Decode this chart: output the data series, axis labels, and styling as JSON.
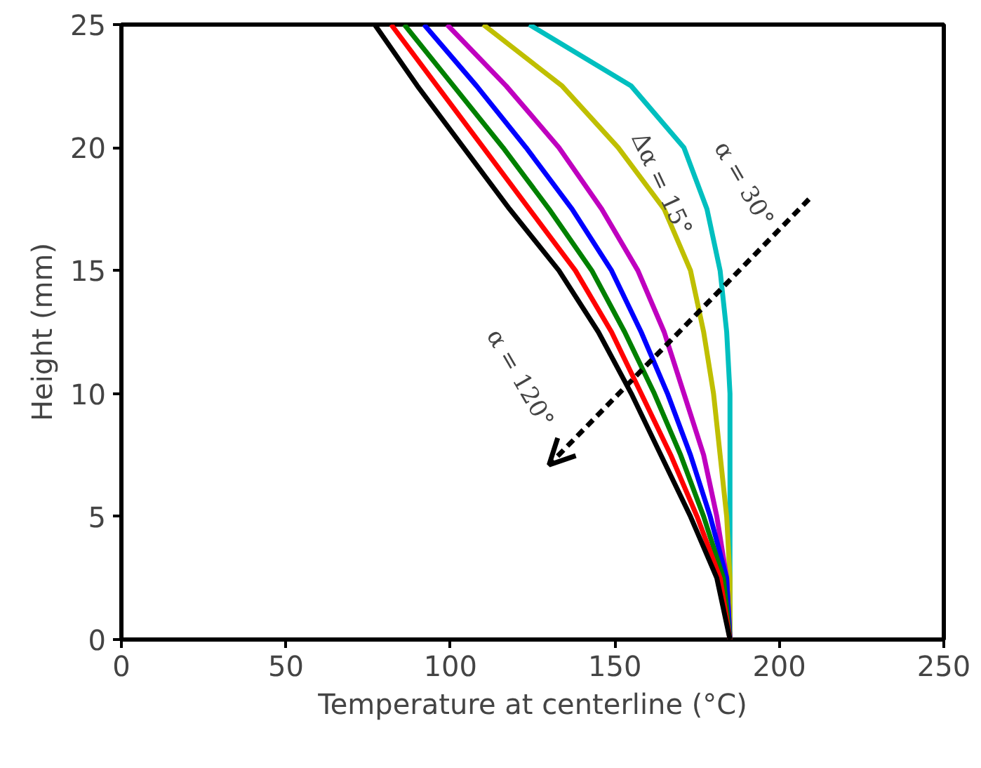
{
  "chart_data": {
    "type": "line",
    "xlabel": "Temperature at centerline (°C)",
    "ylabel": "Height (mm)",
    "xlim": [
      0,
      250
    ],
    "ylim": [
      0,
      25
    ],
    "xticks": [
      0,
      50,
      100,
      150,
      200,
      250
    ],
    "yticks": [
      0,
      5,
      10,
      15,
      20,
      25
    ],
    "grid": false,
    "line_style": "solid",
    "series": [
      {
        "color": "#00bfbf",
        "x": [
          185,
          185,
          185,
          185,
          185,
          184,
          182,
          178,
          171,
          155,
          124
        ],
        "values": [
          0,
          2.5,
          5,
          7.5,
          10,
          12.5,
          15,
          17.5,
          20,
          22.5,
          25
        ]
      },
      {
        "color": "#bfbf00",
        "x": [
          185,
          185,
          184,
          182,
          180,
          177,
          173,
          165,
          151,
          134,
          110
        ],
        "values": [
          0,
          2.5,
          5,
          7.5,
          10,
          12.5,
          15,
          17.5,
          20,
          22.5,
          25
        ]
      },
      {
        "color": "#bf00bf",
        "x": [
          185,
          184,
          181,
          177,
          171,
          165,
          157,
          146,
          133,
          117,
          99
        ],
        "values": [
          0,
          2.5,
          5,
          7.5,
          10,
          12.5,
          15,
          17.5,
          20,
          22.5,
          25
        ]
      },
      {
        "color": "#0000ff",
        "x": [
          185,
          184,
          179,
          173,
          166,
          158,
          149,
          137,
          123,
          108,
          92
        ],
        "values": [
          0,
          2.5,
          5,
          7.5,
          10,
          12.5,
          15,
          17.5,
          20,
          22.5,
          25
        ]
      },
      {
        "color": "#008000",
        "x": [
          185,
          183,
          177,
          170,
          162,
          153,
          143,
          130,
          116,
          101,
          86
        ],
        "values": [
          0,
          2.5,
          5,
          7.5,
          10,
          12.5,
          15,
          17.5,
          20,
          22.5,
          25
        ]
      },
      {
        "color": "#ff0000",
        "x": [
          185,
          182,
          175,
          167,
          158,
          149,
          138,
          124,
          110,
          96,
          82
        ],
        "values": [
          0,
          2.5,
          5,
          7.5,
          10,
          12.5,
          15,
          17.5,
          20,
          22.5,
          25
        ]
      },
      {
        "color": "#000000",
        "x": [
          185,
          181,
          173,
          164,
          155,
          145,
          133,
          118,
          104,
          90,
          77
        ],
        "values": [
          0,
          2.5,
          5,
          7.5,
          10,
          12.5,
          15,
          17.5,
          20,
          22.5,
          25
        ]
      }
    ],
    "annotations": [
      "α = 30°",
      "Δα = 15°",
      "α = 120°"
    ]
  }
}
